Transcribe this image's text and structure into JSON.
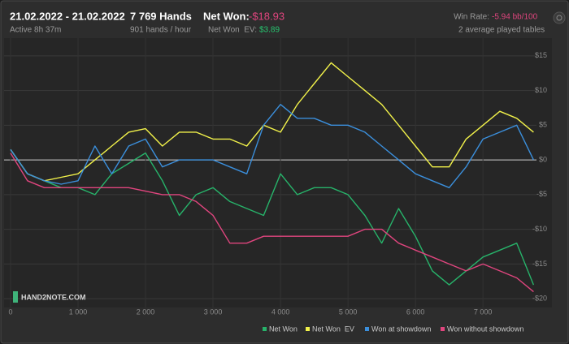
{
  "header": {
    "date_range": "21.02.2022 - 21.02.2022",
    "active": "Active 8h 37m",
    "hands": "7 769 Hands",
    "hands_per_hour": "901 hands / hour",
    "net_won_label": "Net Won:",
    "net_won_value": "-$18.93",
    "net_won_ev_label": "Net Won  EV:",
    "net_won_ev_value": "$3.89",
    "win_rate_label": "Win Rate:",
    "win_rate_value": "-5.94 bb/100",
    "tables": "2 average played tables",
    "watermark": "HAND2NOTE.COM"
  },
  "chart_data": {
    "type": "line",
    "x": [
      0,
      250,
      500,
      750,
      1000,
      1250,
      1500,
      1750,
      2000,
      2250,
      2500,
      2750,
      3000,
      3250,
      3500,
      3750,
      4000,
      4250,
      4500,
      4750,
      5000,
      5250,
      5500,
      5750,
      6000,
      6250,
      6500,
      6750,
      7000,
      7250,
      7500,
      7750
    ],
    "series": [
      {
        "name": "Net Won",
        "color": "#27b36a",
        "values": [
          1.5,
          -2,
          -3,
          -4,
          -4,
          -5,
          -2,
          -0.5,
          1,
          -3,
          -8,
          -5,
          -4,
          -6,
          -7,
          -8,
          -2,
          -5,
          -4,
          -4,
          -5,
          -8,
          -12,
          -7,
          -11,
          -16,
          -18,
          -16,
          -14,
          -13,
          -12,
          -18
        ]
      },
      {
        "name": "Net Won  EV",
        "color": "#f2f24a",
        "values": [
          1.5,
          -2,
          -3,
          -2.5,
          -2,
          0,
          2,
          4,
          4.5,
          2,
          4,
          4,
          3,
          3,
          2,
          5,
          4,
          8,
          11,
          14,
          12,
          10,
          8,
          5,
          2,
          -1,
          -1,
          3,
          5,
          7,
          6,
          4
        ]
      },
      {
        "name": "Won at showdown",
        "color": "#3b8fdc",
        "values": [
          1.5,
          -2,
          -3,
          -3.5,
          -3,
          2,
          -2,
          2,
          3,
          -1,
          0,
          0,
          0,
          -1,
          -2,
          5,
          8,
          6,
          6,
          5,
          5,
          4,
          2,
          0,
          -2,
          -3,
          -4,
          -1,
          3,
          4,
          5,
          0
        ]
      },
      {
        "name": "Won without showdown",
        "color": "#e0457e",
        "values": [
          1,
          -3,
          -4,
          -4,
          -4,
          -4,
          -4,
          -4,
          -4.5,
          -5,
          -5,
          -6,
          -8,
          -12,
          -12,
          -11,
          -11,
          -11,
          -11,
          -11,
          -11,
          -10,
          -10,
          -12,
          -13,
          -14,
          -15,
          -16,
          -15,
          -16,
          -17,
          -19
        ]
      }
    ],
    "xlim": [
      0,
      7769
    ],
    "xticks": [
      0,
      {
        "value": 1000,
        "label": "1 000"
      },
      {
        "value": 2000,
        "label": "2 000"
      },
      {
        "value": 3000,
        "label": "3 000"
      },
      {
        "value": 4000,
        "label": "4 000"
      },
      {
        "value": 5000,
        "label": "5 000"
      },
      {
        "value": 6000,
        "label": "6 000"
      },
      {
        "value": 7000,
        "label": "7 000"
      }
    ],
    "ylim": [
      -20.8,
      17.2
    ],
    "yticks": [
      {
        "value": 15,
        "label": "$15"
      },
      {
        "value": 10,
        "label": "$10"
      },
      {
        "value": 5,
        "label": "$5"
      },
      {
        "value": 0,
        "label": "$0"
      },
      {
        "value": -5,
        "label": "-$5"
      },
      {
        "value": -10,
        "label": "-$10"
      },
      {
        "value": -15,
        "label": "-$15"
      },
      {
        "value": -20,
        "label": "-$20"
      }
    ],
    "grid": true,
    "legend": "bottom-right"
  }
}
